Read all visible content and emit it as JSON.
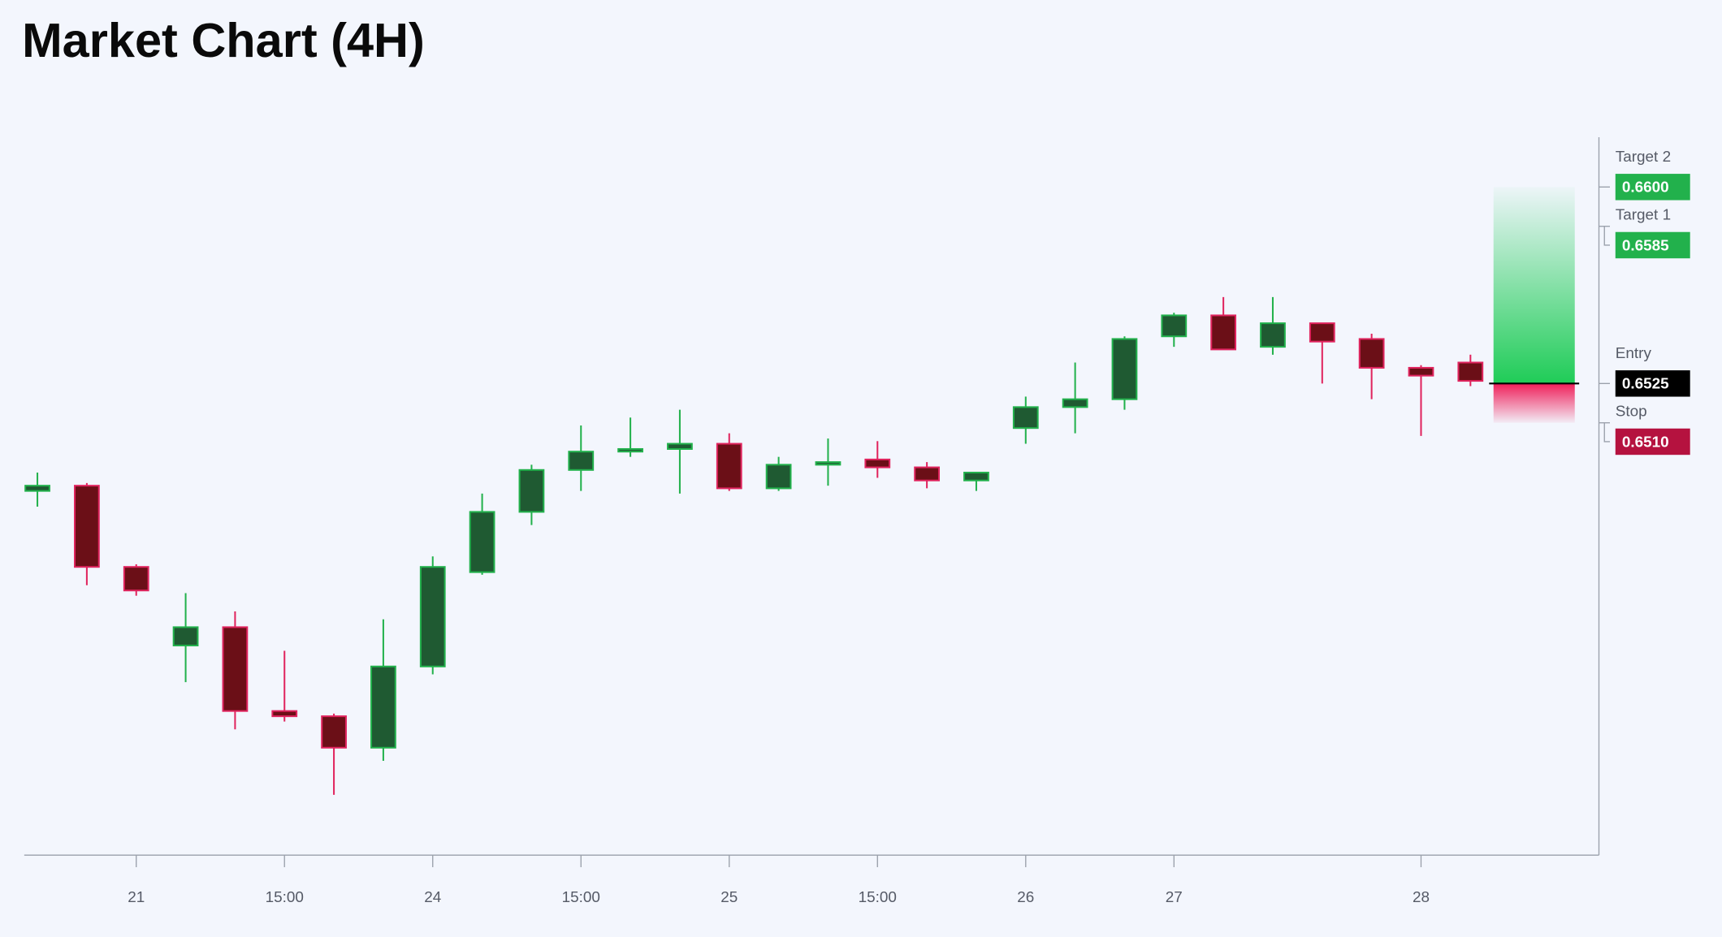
{
  "chart_data": {
    "type": "candlestick",
    "title": "Market Chart (4H)",
    "categories": [
      null,
      null,
      "21",
      null,
      null,
      "15:00",
      null,
      null,
      "24",
      null,
      null,
      "15:00",
      null,
      null,
      "25",
      null,
      null,
      "15:00",
      null,
      null,
      "26",
      null,
      null,
      "27",
      null,
      null,
      null,
      null,
      "28",
      null
    ],
    "open": [
      0.6484,
      0.6486,
      0.6455,
      0.6425,
      0.6432,
      0.64,
      0.6398,
      0.6386,
      0.6417,
      0.6453,
      0.6476,
      0.6492,
      0.6499,
      0.65,
      0.6502,
      0.6485,
      0.6494,
      0.6496,
      0.6493,
      0.6488,
      0.6508,
      0.6516,
      0.6519,
      0.6543,
      0.6551,
      0.6539,
      0.6548,
      0.6542,
      0.6531,
      0.6533
    ],
    "high": [
      0.6491,
      0.6487,
      0.6456,
      0.6445,
      0.6438,
      0.6423,
      0.6399,
      0.6435,
      0.6459,
      0.6483,
      0.6494,
      0.6509,
      0.6512,
      0.6515,
      0.6506,
      0.6497,
      0.6504,
      0.6503,
      0.6495,
      0.6491,
      0.652,
      0.6533,
      0.6543,
      0.6552,
      0.6558,
      0.6558,
      0.6548,
      0.6544,
      0.6532,
      0.6536
    ],
    "low": [
      0.6478,
      0.6448,
      0.6444,
      0.6411,
      0.6393,
      0.6396,
      0.6368,
      0.6381,
      0.6414,
      0.6452,
      0.6471,
      0.6484,
      0.6497,
      0.6483,
      0.6484,
      0.6484,
      0.6486,
      0.6489,
      0.6485,
      0.6484,
      0.6502,
      0.6506,
      0.6515,
      0.6539,
      0.6538,
      0.6536,
      0.6525,
      0.6519,
      0.6505,
      0.6524
    ],
    "close": [
      0.6486,
      0.6455,
      0.6446,
      0.6432,
      0.64,
      0.6398,
      0.6386,
      0.6417,
      0.6455,
      0.6476,
      0.6492,
      0.6499,
      0.65,
      0.6502,
      0.6485,
      0.6494,
      0.6495,
      0.6493,
      0.6488,
      0.6491,
      0.6516,
      0.6519,
      0.6542,
      0.6551,
      0.6538,
      0.6548,
      0.6541,
      0.6531,
      0.6528,
      0.6526
    ],
    "up_color": "#22b14c",
    "up_fill": "#1f5a32",
    "down_color": "#e0245e",
    "down_fill": "#6b0f17",
    "ylim": [
      0.6345,
      0.6619
    ],
    "levels": {
      "names": [
        "Target 2",
        "Target 1",
        "Entry",
        "Stop"
      ],
      "values": [
        0.66,
        0.6585,
        0.6525,
        0.651
      ],
      "value_labels": [
        "0.6600",
        "0.6585",
        "0.6525",
        "0.6510"
      ],
      "colors": [
        "#22b14c",
        "#22b14c",
        "#000000",
        "#b5123f"
      ]
    }
  }
}
